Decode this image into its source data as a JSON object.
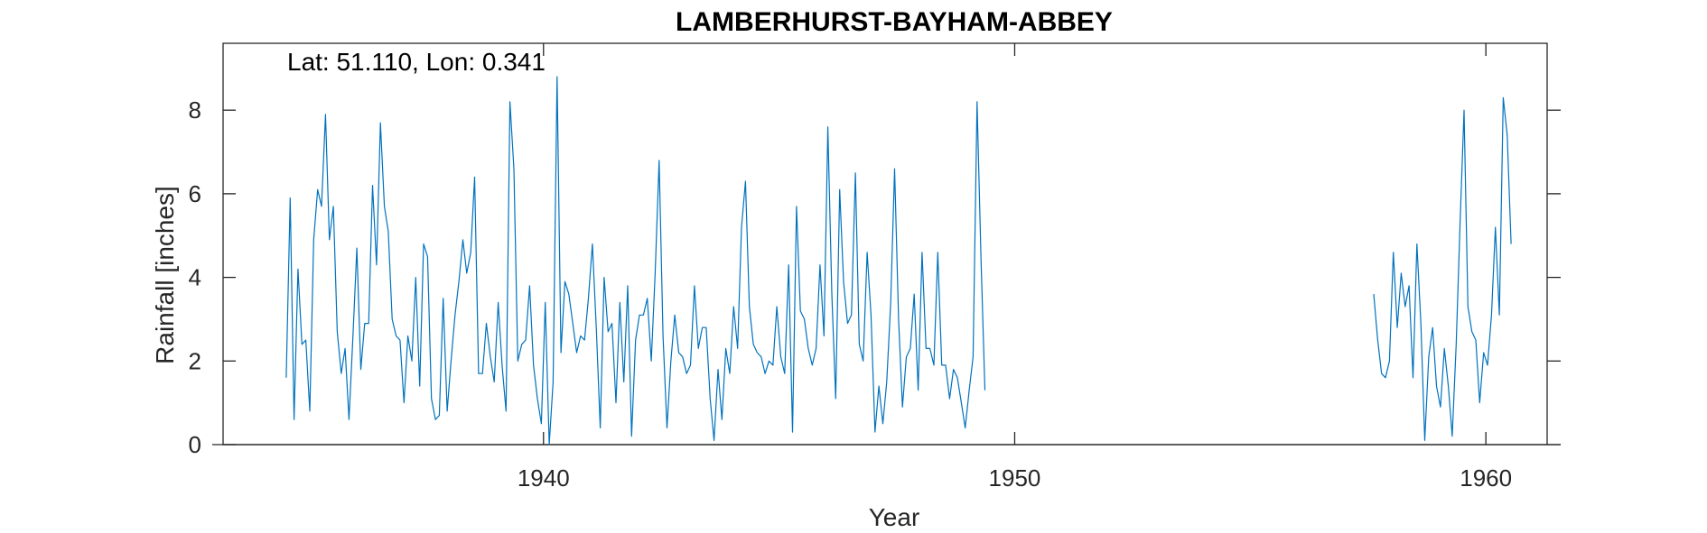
{
  "chart_data": {
    "type": "line",
    "title": "LAMBERHURST-BAYHAM-ABBEY",
    "annotation": "Lat: 51.110, Lon: 0.341",
    "xlabel": "Year",
    "ylabel": "Rainfall [inches]",
    "xlim": [
      1933.2,
      1961.3
    ],
    "ylim": [
      0,
      9.6
    ],
    "xticks": [
      1940,
      1950,
      1960
    ],
    "yticks": [
      0,
      2,
      4,
      6,
      8
    ],
    "grid": false,
    "line_color": "#0072BD",
    "series": [
      {
        "segments": [
          {
            "x_start": 1934.54,
            "x_step": 0.0833,
            "values": [
              1.6,
              5.9,
              0.6,
              4.2,
              2.4,
              2.5,
              0.8,
              4.9,
              6.1,
              5.7,
              7.9,
              4.9,
              5.7,
              2.7,
              1.7,
              2.3,
              0.6,
              2.6,
              4.7,
              1.8,
              2.9,
              2.9,
              6.2,
              4.3,
              7.7,
              5.7,
              5.1,
              3.0,
              2.6,
              2.5,
              1.0,
              2.6,
              2.0,
              4.0,
              1.4,
              4.8,
              4.5,
              1.1,
              0.6,
              0.7,
              3.5,
              0.8,
              2.0,
              3.1,
              3.9,
              4.9,
              4.1,
              4.6,
              6.4,
              1.7,
              1.7,
              2.9,
              2.1,
              1.5,
              3.4,
              1.9,
              0.8,
              8.2,
              6.6,
              2.0,
              2.4,
              2.5,
              3.8,
              1.9,
              1.1,
              0.5,
              3.4,
              0.0,
              1.5,
              8.8,
              2.2,
              3.9,
              3.6,
              2.9,
              2.2,
              2.6,
              2.5,
              3.5,
              4.8,
              2.8,
              0.4,
              4.0,
              2.7,
              2.9,
              1.0,
              3.4,
              1.5,
              3.8,
              0.2,
              2.5,
              3.1,
              3.1,
              3.5,
              2.0,
              4.1,
              6.8,
              2.6,
              0.4,
              2.0,
              3.1,
              2.2,
              2.1,
              1.7,
              1.9,
              3.8,
              2.3,
              2.8,
              2.8,
              1.1,
              0.1,
              1.8,
              0.6,
              2.3,
              1.7,
              3.3,
              2.3,
              5.2,
              6.3,
              3.3,
              2.4,
              2.2,
              2.1,
              1.7,
              2.0,
              1.9,
              3.3,
              2.1,
              1.7,
              4.3,
              0.3,
              5.7,
              3.2,
              3.0,
              2.3,
              1.9,
              2.3,
              4.3,
              2.6,
              7.6,
              3.6,
              1.1,
              6.1,
              3.9,
              2.9,
              3.1,
              6.5,
              2.4,
              2.0,
              4.6,
              3.1,
              0.3,
              1.4,
              0.5,
              1.5,
              3.4,
              6.6,
              3.0,
              0.9,
              2.1,
              2.3,
              3.6,
              1.3,
              4.6,
              2.3,
              2.3,
              1.9,
              4.6,
              1.9,
              1.9,
              1.1,
              1.8,
              1.6,
              1.0,
              0.4,
              1.3,
              2.1,
              8.2,
              4.5,
              1.3
            ]
          },
          {
            "x_start": 1957.62,
            "x_step": 0.0833,
            "values": [
              3.6,
              2.5,
              1.7,
              1.6,
              2.0,
              4.6,
              2.8,
              4.1,
              3.3,
              3.8,
              1.6,
              4.8,
              2.9,
              0.1,
              2.1,
              2.8,
              1.4,
              0.9,
              2.3,
              1.4,
              0.2,
              2.4,
              5.3,
              8.0,
              3.3,
              2.7,
              2.5,
              1.0,
              2.2,
              1.9,
              3.1,
              5.2,
              3.1,
              8.3,
              7.4,
              4.8
            ]
          }
        ]
      }
    ]
  }
}
